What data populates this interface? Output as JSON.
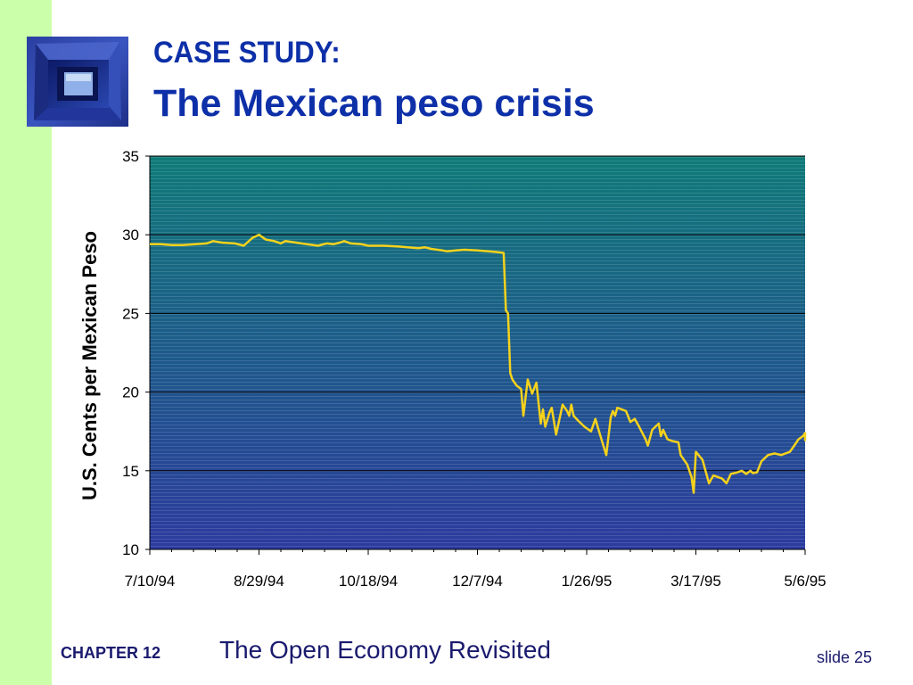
{
  "slide": {
    "title_line1": "CASE STUDY:",
    "title_line2": "The Mexican peso crisis",
    "chapter": "CHAPTER 12",
    "chapter_title": "The Open Economy Revisited",
    "slide_number": "slide 25"
  },
  "colors": {
    "title": "#0d2fa8",
    "sidebar": "#ccffaa",
    "plot_top": "#0f7a78",
    "plot_bottom": "#2c3b9e",
    "line": "#f5d21c"
  },
  "chart_data": {
    "type": "line",
    "title": "",
    "xlabel": "",
    "ylabel": "U.S. Cents per Mexican Peso",
    "ylim": [
      10,
      35
    ],
    "yticks": [
      "10",
      "15",
      "20",
      "25",
      "30",
      "35"
    ],
    "xlim": [
      "1994-07-10",
      "1995-05-06"
    ],
    "xticks": [
      "7/10/94",
      "8/29/94",
      "10/18/94",
      "12/7/94",
      "1/26/95",
      "3/17/95",
      "5/6/95"
    ],
    "grid": true,
    "series": [
      {
        "name": "",
        "points": [
          [
            "1994-07-10",
            29.4
          ],
          [
            "1994-07-15",
            29.4
          ],
          [
            "1994-07-20",
            29.35
          ],
          [
            "1994-07-25",
            29.35
          ],
          [
            "1994-07-31",
            29.4
          ],
          [
            "1994-08-05",
            29.45
          ],
          [
            "1994-08-08",
            29.6
          ],
          [
            "1994-08-12",
            29.5
          ],
          [
            "1994-08-18",
            29.45
          ],
          [
            "1994-08-22",
            29.3
          ],
          [
            "1994-08-26",
            29.8
          ],
          [
            "1994-08-29",
            30.0
          ],
          [
            "1994-09-01",
            29.7
          ],
          [
            "1994-09-05",
            29.6
          ],
          [
            "1994-09-08",
            29.45
          ],
          [
            "1994-09-10",
            29.6
          ],
          [
            "1994-09-15",
            29.5
          ],
          [
            "1994-09-20",
            29.4
          ],
          [
            "1994-09-25",
            29.3
          ],
          [
            "1994-09-29",
            29.45
          ],
          [
            "1994-10-02",
            29.4
          ],
          [
            "1994-10-05",
            29.5
          ],
          [
            "1994-10-07",
            29.6
          ],
          [
            "1994-10-10",
            29.45
          ],
          [
            "1994-10-15",
            29.4
          ],
          [
            "1994-10-18",
            29.3
          ],
          [
            "1994-10-25",
            29.3
          ],
          [
            "1994-11-01",
            29.25
          ],
          [
            "1994-11-05",
            29.2
          ],
          [
            "1994-11-10",
            29.15
          ],
          [
            "1994-11-13",
            29.2
          ],
          [
            "1994-11-16",
            29.1
          ],
          [
            "1994-11-21",
            29.0
          ],
          [
            "1994-11-23",
            28.95
          ],
          [
            "1994-11-27",
            29.0
          ],
          [
            "1994-12-01",
            29.05
          ],
          [
            "1994-12-07",
            29.0
          ],
          [
            "1994-12-12",
            28.95
          ],
          [
            "1994-12-16",
            28.9
          ],
          [
            "1994-12-19",
            28.85
          ],
          [
            "1994-12-20",
            25.2
          ],
          [
            "1994-12-21",
            25.0
          ],
          [
            "1994-12-22",
            21.2
          ],
          [
            "1994-12-23",
            20.8
          ],
          [
            "1994-12-25",
            20.4
          ],
          [
            "1994-12-27",
            20.2
          ],
          [
            "1994-12-28",
            18.5
          ],
          [
            "1994-12-30",
            20.8
          ],
          [
            "1995-01-01",
            19.9
          ],
          [
            "1995-01-03",
            20.6
          ],
          [
            "1995-01-05",
            18.0
          ],
          [
            "1995-01-06",
            18.9
          ],
          [
            "1995-01-07",
            17.8
          ],
          [
            "1995-01-09",
            18.7
          ],
          [
            "1995-01-10",
            19.0
          ],
          [
            "1995-01-12",
            17.3
          ],
          [
            "1995-01-15",
            19.2
          ],
          [
            "1995-01-17",
            18.8
          ],
          [
            "1995-01-18",
            18.5
          ],
          [
            "1995-01-19",
            19.2
          ],
          [
            "1995-01-20",
            18.5
          ],
          [
            "1995-01-22",
            18.2
          ],
          [
            "1995-01-25",
            17.8
          ],
          [
            "1995-01-28",
            17.5
          ],
          [
            "1995-01-30",
            18.3
          ],
          [
            "1995-01-31",
            17.8
          ],
          [
            "1995-02-02",
            16.9
          ],
          [
            "1995-02-04",
            16.0
          ],
          [
            "1995-02-06",
            18.4
          ],
          [
            "1995-02-07",
            18.8
          ],
          [
            "1995-02-08",
            18.5
          ],
          [
            "1995-02-09",
            19.0
          ],
          [
            "1995-02-13",
            18.8
          ],
          [
            "1995-02-15",
            18.1
          ],
          [
            "1995-02-17",
            18.3
          ],
          [
            "1995-02-19",
            17.8
          ],
          [
            "1995-02-22",
            17.0
          ],
          [
            "1995-02-23",
            16.6
          ],
          [
            "1995-02-25",
            17.6
          ],
          [
            "1995-02-28",
            18.0
          ],
          [
            "1995-03-01",
            17.2
          ],
          [
            "1995-03-02",
            17.6
          ],
          [
            "1995-03-04",
            17.0
          ],
          [
            "1995-03-06",
            16.9
          ],
          [
            "1995-03-09",
            16.8
          ],
          [
            "1995-03-10",
            16.0
          ],
          [
            "1995-03-13",
            15.4
          ],
          [
            "1995-03-15",
            14.6
          ],
          [
            "1995-03-16",
            13.6
          ],
          [
            "1995-03-17",
            16.2
          ],
          [
            "1995-03-20",
            15.7
          ],
          [
            "1995-03-23",
            14.2
          ],
          [
            "1995-03-25",
            14.7
          ],
          [
            "1995-03-29",
            14.5
          ],
          [
            "1995-03-31",
            14.2
          ],
          [
            "1995-04-02",
            14.8
          ],
          [
            "1995-04-05",
            14.9
          ],
          [
            "1995-04-07",
            15.0
          ],
          [
            "1995-04-09",
            14.8
          ],
          [
            "1995-04-11",
            15.0
          ],
          [
            "1995-04-12",
            14.85
          ],
          [
            "1995-04-14",
            14.9
          ],
          [
            "1995-04-16",
            15.6
          ],
          [
            "1995-04-19",
            16.0
          ],
          [
            "1995-04-22",
            16.1
          ],
          [
            "1995-04-25",
            16.0
          ],
          [
            "1995-04-29",
            16.2
          ],
          [
            "1995-05-01",
            16.6
          ],
          [
            "1995-05-03",
            17.0
          ],
          [
            "1995-05-05",
            17.2
          ],
          [
            "1995-05-06",
            17.4
          ],
          [
            "1995-05-07",
            16.95
          ],
          [
            "1995-05-10",
            17.1
          ],
          [
            "1995-05-13",
            17.3
          ],
          [
            "1995-05-16",
            17.3
          ]
        ]
      }
    ]
  }
}
